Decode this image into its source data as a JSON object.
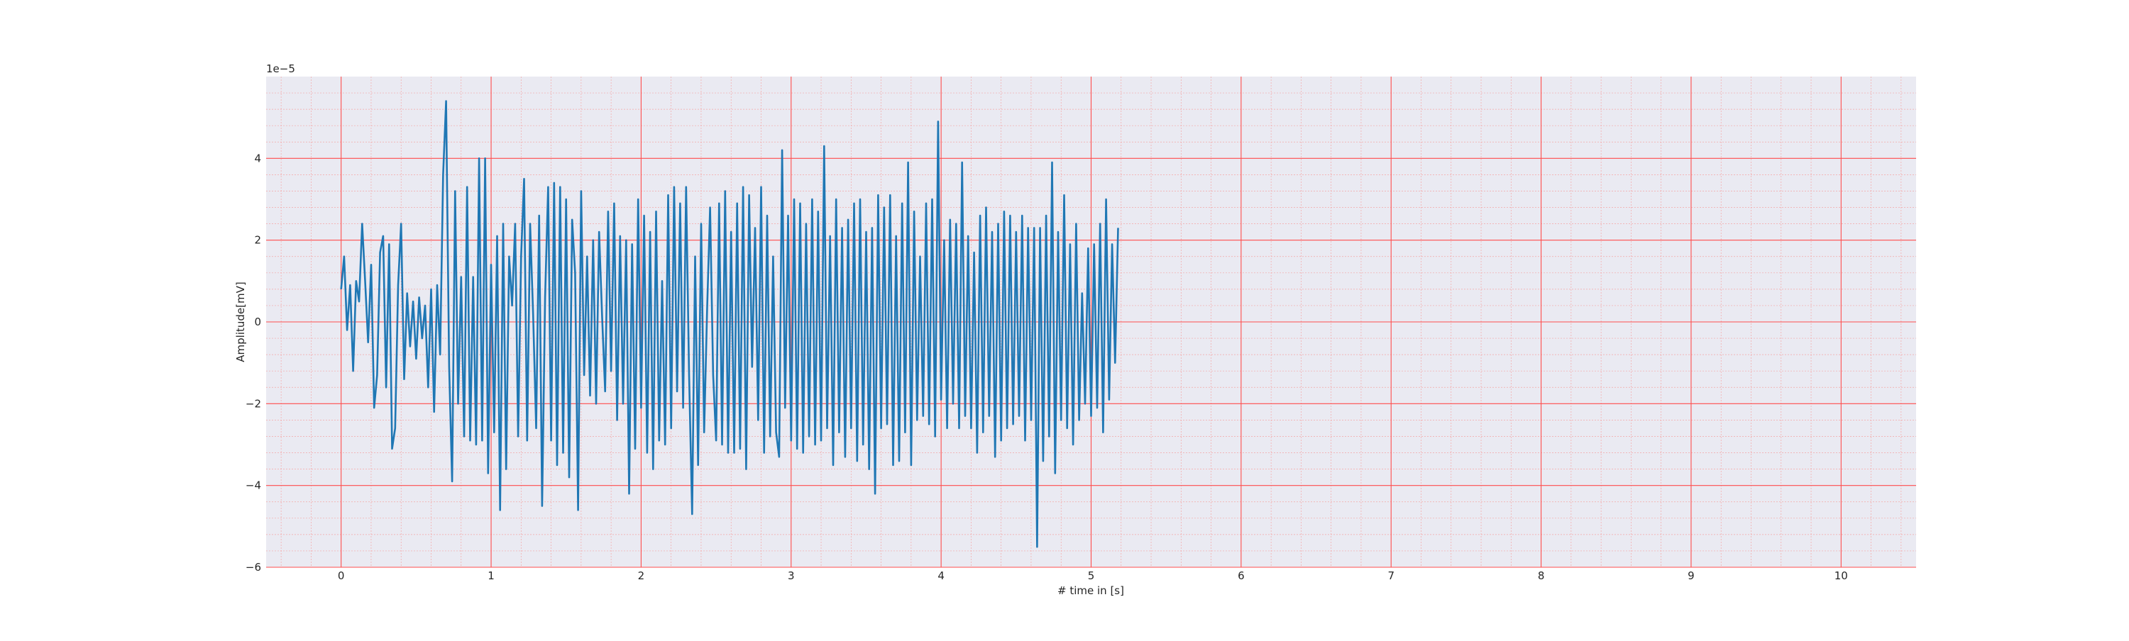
{
  "chart_data": {
    "type": "line",
    "title": "",
    "xlabel": "# time in [s]",
    "ylabel": "Amplitude[mV]",
    "y_offset_label": "1e−5",
    "xlim": [
      -0.5,
      10.5
    ],
    "ylim": [
      -6,
      6
    ],
    "xticks": [
      0,
      1,
      2,
      3,
      4,
      5,
      6,
      7,
      8,
      9,
      10
    ],
    "xtick_labels": [
      "0",
      "1",
      "2",
      "3",
      "4",
      "5",
      "6",
      "7",
      "8",
      "9",
      "10"
    ],
    "yticks": [
      -6,
      -4,
      -2,
      0,
      2,
      4
    ],
    "ytick_labels": [
      "−6",
      "−4",
      "−2",
      "0",
      "2",
      "4"
    ],
    "grid": {
      "major": true,
      "minor": true,
      "major_color": "#ff4d4d",
      "minor_color": "#f4a6a6"
    },
    "background": "#eaeaf2",
    "series": [
      {
        "color": "#1f77b4",
        "x_start": 0,
        "x_step": 0.02,
        "values": [
          0.8,
          1.6,
          -0.2,
          0.9,
          -1.2,
          1.0,
          0.5,
          2.4,
          1.0,
          -0.5,
          1.4,
          -2.1,
          -1.3,
          1.7,
          2.1,
          -1.6,
          1.9,
          -3.1,
          -2.6,
          0.9,
          2.4,
          -1.4,
          0.7,
          -0.6,
          0.5,
          -0.9,
          0.6,
          -0.4,
          0.4,
          -1.6,
          0.8,
          -2.2,
          0.9,
          -0.8,
          3.6,
          5.4,
          -1.1,
          -3.9,
          3.2,
          -2.0,
          1.1,
          -2.8,
          3.3,
          -2.9,
          1.1,
          -3.0,
          4.0,
          -2.9,
          4.0,
          -3.7,
          1.4,
          -2.7,
          2.1,
          -4.6,
          2.4,
          -3.6,
          1.6,
          0.4,
          2.4,
          -2.8,
          1.6,
          3.5,
          -2.9,
          2.4,
          0.2,
          -2.6,
          2.6,
          -4.5,
          0.6,
          3.3,
          -2.9,
          3.4,
          -3.5,
          3.3,
          -3.2,
          3.0,
          -3.8,
          2.5,
          1.2,
          -4.6,
          3.2,
          -1.3,
          1.6,
          -1.8,
          2.0,
          -2.0,
          2.2,
          0.1,
          -1.7,
          2.7,
          -1.2,
          2.9,
          -2.4,
          2.1,
          -2.0,
          2.0,
          -4.2,
          1.9,
          -3.1,
          3.0,
          -2.1,
          2.6,
          -3.2,
          2.2,
          -3.6,
          2.7,
          -2.9,
          1.0,
          -3.0,
          3.1,
          -2.6,
          3.3,
          -1.7,
          2.9,
          -2.1,
          3.3,
          -1.3,
          -4.7,
          1.6,
          -3.5,
          2.4,
          -2.7,
          0.3,
          2.8,
          -1.3,
          -2.9,
          2.9,
          -3.0,
          3.2,
          -3.2,
          2.2,
          -3.2,
          2.9,
          -3.1,
          3.3,
          -3.6,
          3.1,
          -1.1,
          2.3,
          -2.4,
          3.3,
          -3.2,
          2.6,
          -2.8,
          1.6,
          -2.7,
          -3.3,
          4.2,
          -2.1,
          2.6,
          -2.9,
          3.0,
          -3.1,
          2.9,
          -3.2,
          2.4,
          -2.8,
          3.0,
          -3.0,
          2.7,
          -2.9,
          4.3,
          -2.6,
          2.1,
          -3.5,
          3.0,
          -2.7,
          2.3,
          -3.3,
          2.5,
          -2.6,
          2.9,
          -3.4,
          3.0,
          -3.0,
          2.2,
          -3.6,
          2.3,
          -4.2,
          3.1,
          -2.6,
          2.8,
          -2.5,
          3.1,
          -3.5,
          2.1,
          -3.4,
          2.9,
          -2.7,
          3.9,
          -3.5,
          2.7,
          -2.4,
          1.6,
          -2.3,
          2.9,
          -2.5,
          3.0,
          -2.8,
          4.9,
          -1.9,
          2.0,
          -2.6,
          2.5,
          -2.0,
          2.4,
          -2.6,
          3.9,
          -2.3,
          2.1,
          -2.6,
          1.7,
          -3.2,
          2.6,
          -2.7,
          2.8,
          -2.3,
          2.2,
          -3.3,
          2.4,
          -2.9,
          2.7,
          -2.6,
          2.6,
          -2.5,
          2.2,
          -2.3,
          2.6,
          -2.9,
          2.3,
          -2.4,
          2.3,
          -5.5,
          2.3,
          -3.4,
          2.6,
          -2.8,
          3.9,
          -3.7,
          2.2,
          -2.4,
          3.1,
          -2.6,
          1.9,
          -3.0,
          2.4,
          -2.4,
          0.7,
          -2.0,
          1.8,
          -2.3,
          1.9,
          -2.1,
          2.4,
          -2.7,
          3.0,
          -1.9,
          1.9,
          -1.0,
          2.3
        ]
      }
    ]
  }
}
